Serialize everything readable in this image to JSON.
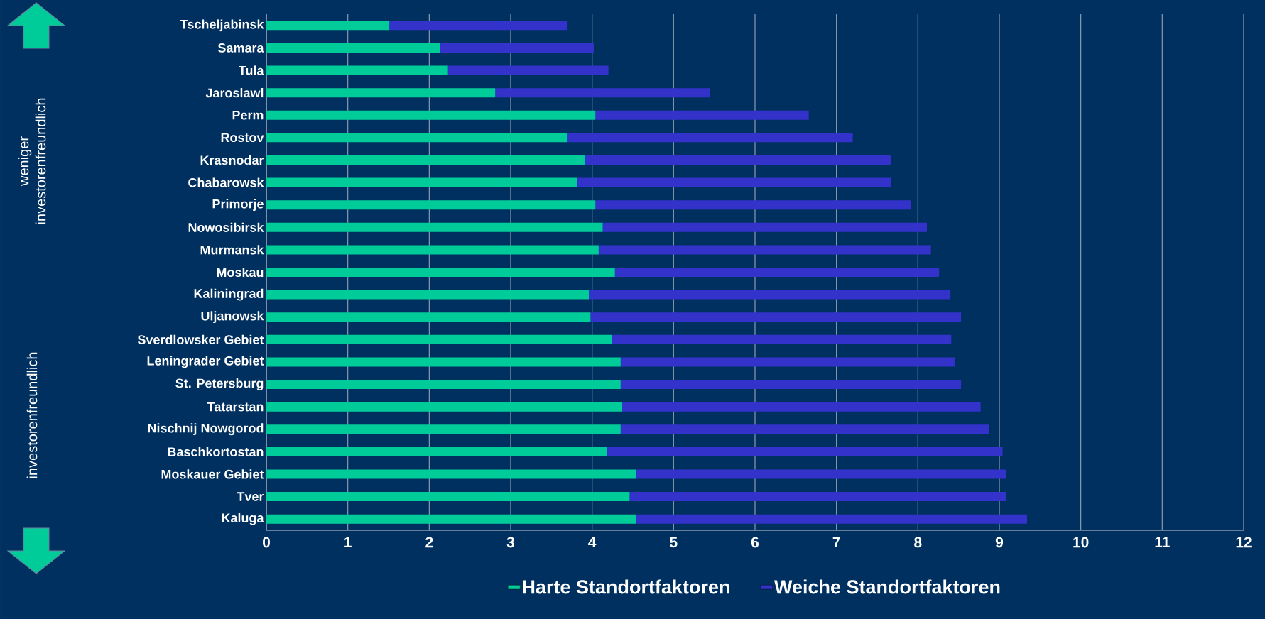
{
  "chart_data": {
    "type": "bar",
    "orientation": "horizontal",
    "stacked": true,
    "categories": [
      "Tscheljabinsk",
      "Samara",
      "Tula",
      "Jaroslawl",
      "Perm",
      "Rostov",
      "Krasnodar",
      "Chabarowsk",
      "Primorje",
      "Nowosibirsk",
      "Murmansk",
      "Moskau",
      "Kaliningrad",
      "Uljanowsk",
      "Sverdlowsker Gebiet",
      "Leningrader Gebiet",
      "St. Petersburg",
      "Tatarstan",
      "Nischnij Nowgorod",
      "Baschkortostan",
      "Moskauer Gebiet",
      "Tver",
      "Kaluga"
    ],
    "series": [
      {
        "name": "Harte Standortfaktoren",
        "color": "#00cc99",
        "values": [
          1.51,
          2.13,
          2.23,
          2.81,
          4.04,
          3.69,
          3.91,
          3.82,
          4.04,
          4.13,
          4.08,
          4.28,
          3.96,
          3.98,
          4.24,
          4.35,
          4.35,
          4.37,
          4.35,
          4.18,
          4.54,
          4.46,
          4.54
        ]
      },
      {
        "name": "Weiche Standortfaktoren",
        "color": "#3333cc",
        "values": [
          2.18,
          1.89,
          1.97,
          2.64,
          2.62,
          3.51,
          3.76,
          3.85,
          3.87,
          3.98,
          4.08,
          3.98,
          4.44,
          4.55,
          4.17,
          4.1,
          4.18,
          4.4,
          4.52,
          4.86,
          4.54,
          4.62,
          4.8
        ]
      }
    ],
    "xlim": [
      0,
      12
    ],
    "xticks": [
      0,
      1,
      2,
      3,
      4,
      5,
      6,
      7,
      8,
      9,
      10,
      11,
      12
    ],
    "grid": "x",
    "legend": "bottom",
    "annotations": [
      "weniger investorenfreundlich",
      "investorenfreundlich"
    ]
  }
}
